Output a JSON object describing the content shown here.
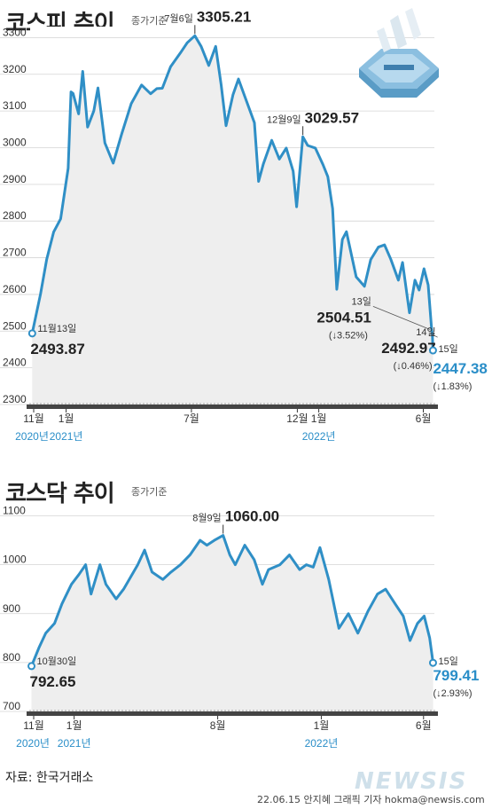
{
  "header": {
    "kospi_title": "코스피 추이",
    "kosdaq_title": "코스닥 추이",
    "basis_label": "종가기준"
  },
  "footer": {
    "source": "자료: 한국거래소",
    "credit": "22.06.15 안지혜 그래픽 기자 hokma@newsis.com",
    "logo": "NEWSIS"
  },
  "colors": {
    "line": "#2f8fc6",
    "area": "#eeeeee",
    "highlight": "#2a8ec8",
    "text": "#222222"
  },
  "chart_data": [
    {
      "type": "area",
      "title": "코스피 추이",
      "subtitle": "종가기준",
      "yticks": [
        2300,
        2400,
        2500,
        2600,
        2700,
        2800,
        2900,
        3000,
        3100,
        3200,
        3300
      ],
      "ylim": [
        2300,
        3330
      ],
      "xlim": [
        "2020-11-10",
        "2022-06-17"
      ],
      "xticks": [
        {
          "date": "2020-11-01",
          "label": "11월"
        },
        {
          "date": "2021-01-01",
          "label": "1월"
        },
        {
          "date": "2021-07-01",
          "label": "7월"
        },
        {
          "date": "2021-12-01",
          "label": "12월"
        },
        {
          "date": "2022-01-01",
          "label": "1월"
        },
        {
          "date": "2022-06-01",
          "label": "6월"
        }
      ],
      "year_labels": [
        {
          "date": "2020-11-01",
          "label": "2020년"
        },
        {
          "date": "2021-01-01",
          "label": "2021년"
        },
        {
          "date": "2022-01-01",
          "label": "2022년"
        }
      ],
      "x": [
        "2020-11-13",
        "2020-11-25",
        "2020-12-04",
        "2020-12-14",
        "2020-12-24",
        "2021-01-04",
        "2021-01-08",
        "2021-01-11",
        "2021-01-19",
        "2021-01-25",
        "2021-02-01",
        "2021-02-10",
        "2021-02-16",
        "2021-02-26",
        "2021-03-10",
        "2021-03-22",
        "2021-04-05",
        "2021-04-20",
        "2021-05-03",
        "2021-05-12",
        "2021-05-20",
        "2021-06-01",
        "2021-06-15",
        "2021-06-25",
        "2021-07-06",
        "2021-07-15",
        "2021-07-26",
        "2021-08-05",
        "2021-08-13",
        "2021-08-20",
        "2021-08-30",
        "2021-09-07",
        "2021-09-16",
        "2021-09-30",
        "2021-10-06",
        "2021-10-13",
        "2021-10-25",
        "2021-11-05",
        "2021-11-15",
        "2021-11-25",
        "2021-11-30",
        "2021-12-09",
        "2021-12-16",
        "2021-12-27",
        "2022-01-07",
        "2022-01-14",
        "2022-01-21",
        "2022-01-27",
        "2022-02-04",
        "2022-02-10",
        "2022-02-24",
        "2022-03-08",
        "2022-03-17",
        "2022-03-28",
        "2022-04-06",
        "2022-04-15",
        "2022-04-26",
        "2022-05-02",
        "2022-05-12",
        "2022-05-20",
        "2022-05-26",
        "2022-06-02",
        "2022-06-08",
        "2022-06-13",
        "2022-06-14",
        "2022-06-15"
      ],
      "values": [
        2493.87,
        2601,
        2696,
        2770,
        2806,
        2944,
        3152,
        3148,
        3092,
        3208,
        3056,
        3100,
        3163,
        3013,
        2958,
        3036,
        3120,
        3171,
        3147,
        3161,
        3162,
        3221,
        3258,
        3286,
        3305.21,
        3276,
        3224,
        3276,
        3171,
        3060,
        3144,
        3187,
        3140,
        3068,
        2908,
        2956,
        3020,
        2969,
        2999,
        2936,
        2839,
        3029.57,
        3006,
        2999,
        2954,
        2921,
        2834,
        2614,
        2750,
        2771,
        2648,
        2622,
        2695,
        2729,
        2735,
        2696,
        2639,
        2687,
        2550,
        2639,
        2612,
        2670,
        2626,
        2504.51,
        2492.97,
        2447.38
      ],
      "annotations": [
        {
          "date": "2021-07-06",
          "date_label": "7월6일",
          "value_label": "3305.21"
        },
        {
          "date": "2021-12-09",
          "date_label": "12월9일",
          "value_label": "3029.57"
        },
        {
          "date": "2020-11-13",
          "date_label": "11월13일",
          "value_label": "2493.87"
        },
        {
          "date": "2022-06-13",
          "date_label": "13일",
          "value_label": "2504.51",
          "change": "(↓3.52%)"
        },
        {
          "date": "2022-06-14",
          "date_label": "14일",
          "value_label": "2492.97",
          "change": "(↓0.46%)"
        },
        {
          "date": "2022-06-15",
          "date_label": "15일",
          "value_label": "2447.38",
          "change": "(↓1.83%)"
        }
      ]
    },
    {
      "type": "area",
      "title": "코스닥 추이",
      "subtitle": "종가기준",
      "yticks": [
        700,
        800,
        900,
        1000,
        1100
      ],
      "ylim": [
        700,
        1110
      ],
      "xlim": [
        "2020-10-28",
        "2022-06-17"
      ],
      "xticks": [
        {
          "date": "2020-11-01",
          "label": "11월"
        },
        {
          "date": "2021-01-01",
          "label": "1월"
        },
        {
          "date": "2021-08-01",
          "label": "8월"
        },
        {
          "date": "2022-01-01",
          "label": "1월"
        },
        {
          "date": "2022-06-01",
          "label": "6월"
        }
      ],
      "year_labels": [
        {
          "date": "2020-11-01",
          "label": "2020년"
        },
        {
          "date": "2021-01-01",
          "label": "2021년"
        },
        {
          "date": "2022-01-01",
          "label": "2022년"
        }
      ],
      "x": [
        "2020-10-30",
        "2020-11-10",
        "2020-11-20",
        "2020-12-03",
        "2020-12-14",
        "2020-12-28",
        "2021-01-08",
        "2021-01-18",
        "2021-01-26",
        "2021-02-08",
        "2021-02-17",
        "2021-03-04",
        "2021-03-15",
        "2021-04-05",
        "2021-04-15",
        "2021-04-26",
        "2021-05-12",
        "2021-05-24",
        "2021-06-07",
        "2021-06-21",
        "2021-07-06",
        "2021-07-16",
        "2021-07-27",
        "2021-08-09",
        "2021-08-19",
        "2021-08-27",
        "2021-09-10",
        "2021-09-24",
        "2021-10-06",
        "2021-10-15",
        "2021-11-01",
        "2021-11-15",
        "2021-11-30",
        "2021-12-10",
        "2021-12-20",
        "2021-12-30",
        "2022-01-12",
        "2022-01-27",
        "2022-02-10",
        "2022-02-24",
        "2022-03-11",
        "2022-03-25",
        "2022-04-06",
        "2022-04-20",
        "2022-05-02",
        "2022-05-12",
        "2022-05-23",
        "2022-06-02",
        "2022-06-10",
        "2022-06-15"
      ],
      "values": [
        792.65,
        830,
        860,
        880,
        920,
        960,
        980,
        1000,
        940,
        1000,
        960,
        930,
        950,
        1000,
        1030,
        985,
        970,
        985,
        1000,
        1020,
        1050,
        1040,
        1050,
        1060.0,
        1020,
        1000,
        1040,
        1010,
        960,
        990,
        1000,
        1020,
        990,
        1000,
        995,
        1035,
        970,
        870,
        900,
        860,
        905,
        940,
        950,
        920,
        895,
        845,
        880,
        895,
        850,
        799.41
      ],
      "annotations": [
        {
          "date": "2021-08-09",
          "date_label": "8월9일",
          "value_label": "1060.00"
        },
        {
          "date": "2020-10-30",
          "date_label": "10월30일",
          "value_label": "792.65"
        },
        {
          "date": "2022-06-15",
          "date_label": "15일",
          "value_label": "799.41",
          "change": "(↓2.93%)"
        }
      ]
    }
  ]
}
